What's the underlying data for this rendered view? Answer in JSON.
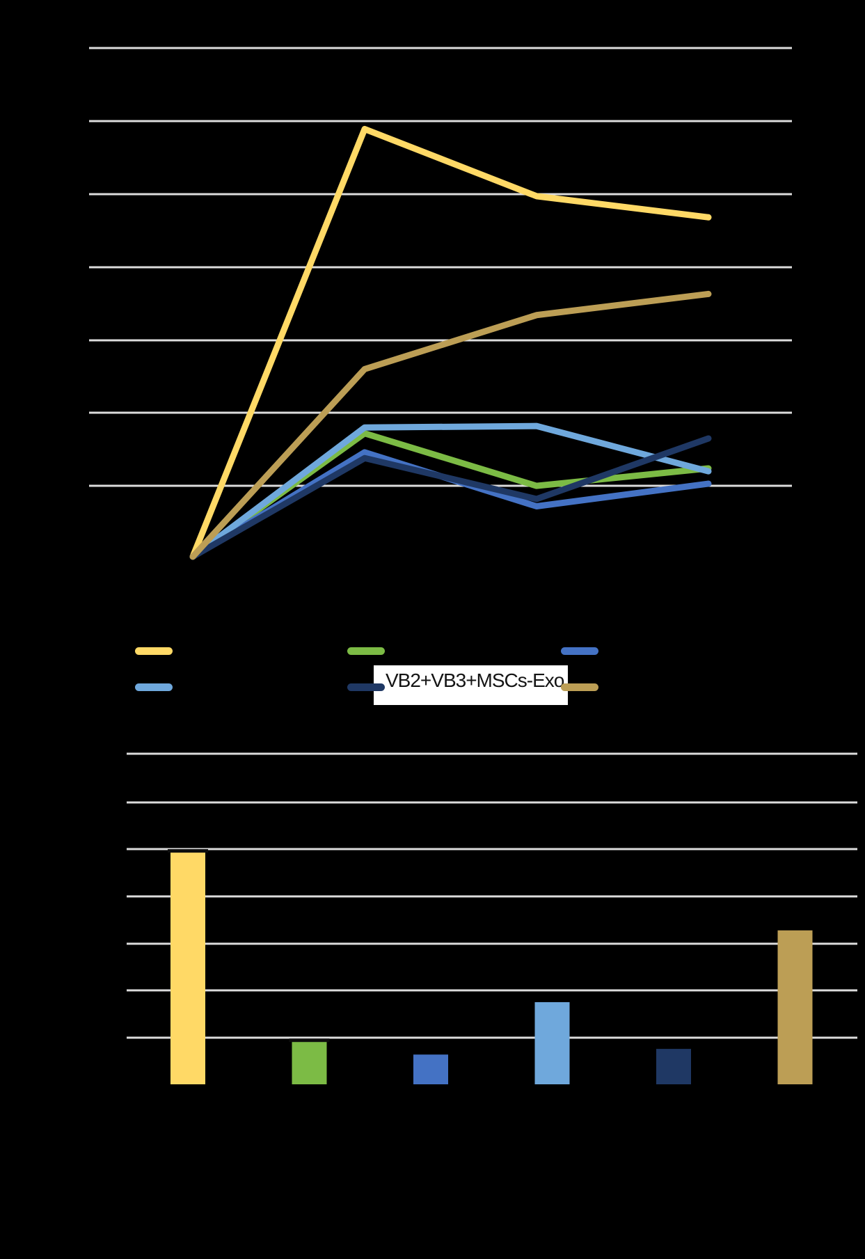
{
  "page": {
    "background_color": "#000000",
    "gridline_color": "#DCDCDC",
    "note": "Axis titles, tick labels and most legend labels are rendered black-on-black (not visible); only chart graphics and one boxed legend label are visible."
  },
  "legend": {
    "visible_label": "VB2+VB3+MSCs-Exo",
    "rows": [
      [
        {
          "id": "yellow",
          "label": ""
        },
        {
          "id": "green",
          "label": ""
        },
        {
          "id": "royal-blue",
          "label": ""
        }
      ],
      [
        {
          "id": "light-blue",
          "label": ""
        },
        {
          "id": "navy",
          "label": "VB2+VB3+MSCs-Exo"
        },
        {
          "id": "tan",
          "label": ""
        }
      ]
    ]
  },
  "colors": {
    "yellow": "#FFD966",
    "green": "#7CBB45",
    "royal-blue": "#4472C4",
    "light-blue": "#6FA8DC",
    "navy": "#1F3864",
    "tan": "#BC9E55",
    "error_cap": "#0d0d0d",
    "label_box_bg": "#FFFFFF",
    "label_text": "#141414"
  },
  "chart_data": [
    {
      "type": "line",
      "title": "",
      "x": [
        0,
        1,
        2,
        3
      ],
      "x_tick_labels_visible": false,
      "y_tick_labels_visible": false,
      "ylim": [
        0,
        7
      ],
      "gridline_interval": 1,
      "grid": true,
      "legend_position": "bottom",
      "series": [
        {
          "id": "yellow",
          "label": "",
          "color": "#FFD966",
          "values": [
            0.03,
            5.89,
            4.97,
            4.68
          ]
        },
        {
          "id": "green",
          "label": "",
          "color": "#7CBB45",
          "values": [
            0.03,
            1.72,
            1.0,
            1.24
          ]
        },
        {
          "id": "royal-blue",
          "label": "",
          "color": "#4472C4",
          "values": [
            0.03,
            1.46,
            0.72,
            1.03
          ]
        },
        {
          "id": "light-blue",
          "label": "",
          "color": "#6FA8DC",
          "values": [
            0.03,
            1.8,
            1.82,
            1.2
          ]
        },
        {
          "id": "navy",
          "label": "VB2+VB3+MSCs-Exo",
          "color": "#1F3864",
          "values": [
            0.03,
            1.38,
            0.82,
            1.65
          ]
        },
        {
          "id": "tan",
          "label": "",
          "color": "#BC9E55",
          "values": [
            0.03,
            2.6,
            3.34,
            3.63
          ]
        }
      ]
    },
    {
      "type": "bar",
      "title": "",
      "categories": [
        "",
        "",
        "",
        "",
        "",
        ""
      ],
      "x_tick_labels_visible": false,
      "y_tick_labels_visible": false,
      "ylim": [
        0,
        7
      ],
      "gridline_interval": 1,
      "grid": true,
      "bars": [
        {
          "id": "yellow",
          "label": "",
          "color": "#FFD966",
          "value": 4.95,
          "black_cap": true
        },
        {
          "id": "green",
          "label": "",
          "color": "#7CBB45",
          "value": 0.94,
          "black_cap": true
        },
        {
          "id": "royal-blue",
          "label": "",
          "color": "#4472C4",
          "value": 0.63,
          "black_cap": false
        },
        {
          "id": "light-blue",
          "label": "",
          "color": "#6FA8DC",
          "value": 1.74,
          "black_cap": false
        },
        {
          "id": "navy",
          "label": "",
          "color": "#1F3864",
          "value": 0.75,
          "black_cap": false
        },
        {
          "id": "tan",
          "label": "",
          "color": "#BC9E55",
          "value": 3.26,
          "black_cap": false
        }
      ]
    }
  ]
}
